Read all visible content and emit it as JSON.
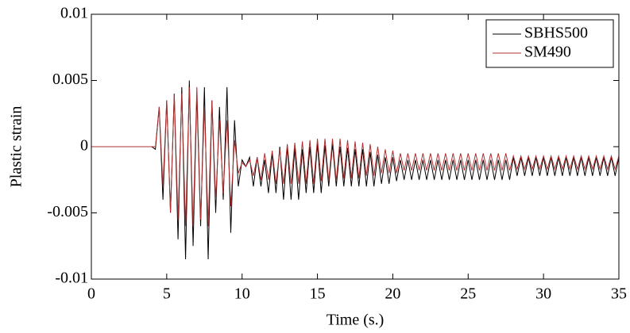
{
  "chart_data": {
    "type": "line",
    "xlabel": "Time (s.)",
    "ylabel": "Plastic strain",
    "x": [
      0,
      4,
      4.25,
      4.5,
      4.75,
      5,
      5.25,
      5.5,
      5.75,
      6,
      6.25,
      6.5,
      6.75,
      7,
      7.25,
      7.5,
      7.75,
      8,
      8.25,
      8.5,
      8.75,
      9,
      9.25,
      9.5,
      9.75,
      10,
      10.25,
      10.5,
      10.75,
      11,
      11.25,
      11.5,
      11.75,
      12,
      12.25,
      12.5,
      12.75,
      13,
      13.25,
      13.5,
      13.75,
      14,
      14.25,
      14.5,
      14.75,
      15,
      15.25,
      15.5,
      15.75,
      16,
      16.25,
      16.5,
      16.75,
      17,
      17.25,
      17.5,
      17.75,
      18,
      18.25,
      18.5,
      18.75,
      19,
      19.25,
      19.5,
      19.75,
      20,
      20.25,
      20.5,
      20.75,
      21,
      21.25,
      21.5,
      21.75,
      22,
      22.25,
      22.5,
      22.75,
      23,
      23.25,
      23.5,
      23.75,
      24,
      24.25,
      24.5,
      24.75,
      25,
      25.25,
      25.5,
      25.75,
      26,
      26.25,
      26.5,
      26.75,
      27,
      27.25,
      27.5,
      27.75,
      28,
      28.25,
      28.5,
      28.75,
      29,
      29.25,
      29.5,
      29.75,
      30,
      30.25,
      30.5,
      30.75,
      31,
      31.25,
      31.5,
      31.75,
      32,
      32.25,
      32.5,
      32.75,
      33,
      33.25,
      33.5,
      33.75,
      34,
      34.25,
      34.5,
      34.75,
      35
    ],
    "series": [
      {
        "name": "SBHS500",
        "color": "#000000",
        "values": [
          0,
          0,
          -0.0002,
          0.003,
          -0.004,
          0.0035,
          -0.005,
          0.004,
          -0.007,
          0.0045,
          -0.0085,
          0.005,
          -0.0075,
          0.004,
          -0.006,
          0.0045,
          -0.0085,
          0.0035,
          -0.005,
          0.003,
          -0.004,
          0.0045,
          -0.0065,
          0.002,
          -0.003,
          -0.001,
          -0.0015,
          -0.0008,
          -0.003,
          -0.0008,
          -0.003,
          -0.001,
          -0.0035,
          -0.0005,
          -0.0035,
          0,
          -0.004,
          0,
          -0.004,
          -0.0001,
          -0.004,
          -0.0002,
          -0.0035,
          0,
          -0.0035,
          0.0002,
          -0.0035,
          0.0001,
          -0.003,
          0.0002,
          -0.003,
          0,
          -0.003,
          -0.0001,
          -0.003,
          -0.0002,
          -0.003,
          -0.0002,
          -0.003,
          -0.0004,
          -0.003,
          -0.0006,
          -0.0028,
          -0.0008,
          -0.0028,
          -0.0008,
          -0.0026,
          -0.001,
          -0.0025,
          -0.001,
          -0.0025,
          -0.001,
          -0.0025,
          -0.001,
          -0.0025,
          -0.001,
          -0.0025,
          -0.001,
          -0.0025,
          -0.001,
          -0.0025,
          -0.001,
          -0.0025,
          -0.001,
          -0.0025,
          -0.001,
          -0.0025,
          -0.001,
          -0.0025,
          -0.001,
          -0.0025,
          -0.001,
          -0.0025,
          -0.001,
          -0.0025,
          -0.001,
          -0.0025,
          -0.0008,
          -0.0022,
          -0.0008,
          -0.0022,
          -0.0008,
          -0.0022,
          -0.0008,
          -0.0022,
          -0.0008,
          -0.0022,
          -0.0008,
          -0.0022,
          -0.0008,
          -0.0022,
          -0.0008,
          -0.0022,
          -0.0008,
          -0.0022,
          -0.0008,
          -0.0022,
          -0.0008,
          -0.0022,
          -0.0008,
          -0.0022,
          -0.0008,
          -0.0022,
          -0.0008,
          -0.0022,
          -0.0008
        ]
      },
      {
        "name": "SM490",
        "color": "#b03030",
        "values": [
          0,
          0,
          0,
          0.003,
          -0.003,
          0.0035,
          -0.005,
          0.004,
          -0.0055,
          0.004,
          -0.006,
          0.0045,
          -0.006,
          0.0045,
          -0.0055,
          0.003,
          -0.006,
          0.0035,
          -0.004,
          0.002,
          -0.0035,
          0.002,
          -0.0045,
          0.0005,
          -0.002,
          -0.0012,
          -0.0015,
          -0.001,
          -0.0022,
          -0.0008,
          -0.0025,
          -0.0005,
          -0.0025,
          -0.0003,
          -0.0028,
          -0.0002,
          -0.0028,
          0.0002,
          -0.0028,
          0.0003,
          -0.0028,
          0.0004,
          -0.0028,
          0.0005,
          -0.0028,
          0.0006,
          -0.0026,
          0.0006,
          -0.0026,
          0.0006,
          -0.0026,
          0.0006,
          -0.0024,
          0.0005,
          -0.0024,
          0.0004,
          -0.0024,
          0.0003,
          -0.0022,
          0.0002,
          -0.0022,
          0,
          -0.002,
          -0.0002,
          -0.002,
          -0.0003,
          -0.002,
          -0.0005,
          -0.0018,
          -0.0005,
          -0.0018,
          -0.0005,
          -0.0018,
          -0.0005,
          -0.0018,
          -0.0005,
          -0.0018,
          -0.0005,
          -0.0018,
          -0.0005,
          -0.0018,
          -0.0005,
          -0.0018,
          -0.0005,
          -0.0018,
          -0.0005,
          -0.0018,
          -0.0005,
          -0.0018,
          -0.0005,
          -0.0018,
          -0.0005,
          -0.0018,
          -0.0005,
          -0.0018,
          -0.0005,
          -0.0018,
          -0.0007,
          -0.0017,
          -0.0007,
          -0.0017,
          -0.0007,
          -0.0017,
          -0.0007,
          -0.0017,
          -0.0007,
          -0.0017,
          -0.0007,
          -0.0017,
          -0.0007,
          -0.0017,
          -0.0007,
          -0.0017,
          -0.0007,
          -0.0017,
          -0.0007,
          -0.0017,
          -0.0007,
          -0.0017,
          -0.0007,
          -0.0017,
          -0.0007,
          -0.0017,
          -0.0007,
          -0.0017,
          -0.0007
        ]
      }
    ],
    "xlim": [
      0,
      35
    ],
    "xticks": [
      0,
      5,
      10,
      15,
      20,
      25,
      30,
      35
    ],
    "ylim": [
      -0.01,
      0.01
    ],
    "yticks": [
      -0.01,
      -0.005,
      0,
      0.005,
      0.01
    ],
    "grid": false,
    "legend": "northeast"
  }
}
